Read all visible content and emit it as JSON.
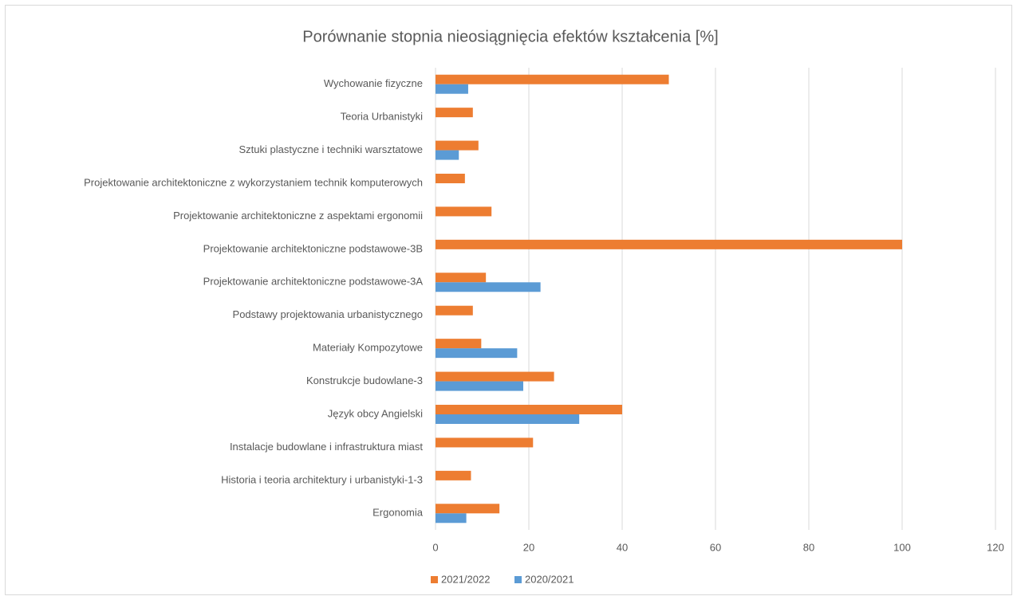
{
  "chart_data": {
    "type": "hbar",
    "title": "Porównanie stopnia nieosiągnięcia efektów kształcenia [%]",
    "categories": [
      "Wychowanie fizyczne",
      "Teoria Urbanistyki",
      "Sztuki plastyczne i techniki warsztatowe",
      "Projektowanie architektoniczne z wykorzystaniem technik komputerowych",
      "Projektowanie architektoniczne z aspektami ergonomii",
      "Projektowanie architektoniczne podstawowe-3B",
      "Projektowanie architektoniczne podstawowe-3A",
      "Podstawy projektowania urbanistycznego",
      "Materiały Kompozytowe",
      "Konstrukcje budowlane-3",
      "Język obcy Angielski",
      "Instalacje budowlane i infrastruktura miast",
      "Historia i teoria architektury i urbanistyki-1-3",
      "Ergonomia"
    ],
    "series": [
      {
        "name": "2021/2022",
        "color": "#ed7d31",
        "values": [
          50,
          8,
          9.2,
          6.3,
          12,
          100,
          10.8,
          8,
          9.8,
          25.4,
          40,
          20.9,
          7.6,
          13.7
        ]
      },
      {
        "name": "2020/2021",
        "color": "#5b9bd5",
        "values": [
          7,
          null,
          5,
          null,
          null,
          null,
          22.5,
          null,
          17.5,
          18.8,
          30.8,
          null,
          null,
          6.6
        ]
      }
    ],
    "xlim": [
      0,
      120
    ],
    "xticks": [
      0,
      20,
      40,
      60,
      80,
      100,
      120
    ],
    "grid": true,
    "legend": "bottom"
  }
}
